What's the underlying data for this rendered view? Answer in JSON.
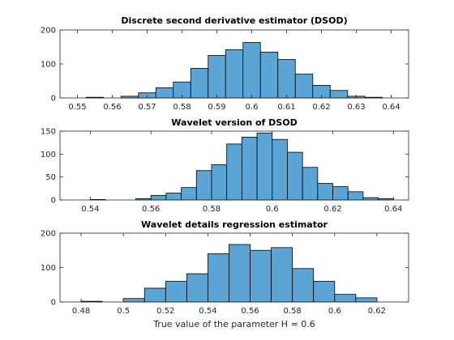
{
  "chart_data": [
    {
      "type": "bar",
      "title": "Discrete second derivative estimator (DSOD)",
      "xlabel": "",
      "ylabel": "",
      "xlim": [
        0.545,
        0.645
      ],
      "ylim": [
        0,
        200
      ],
      "xticks": [
        "0.55",
        "0.56",
        "0.57",
        "0.58",
        "0.59",
        "0.6",
        "0.61",
        "0.62",
        "0.63",
        "0.64"
      ],
      "xtick_values": [
        0.55,
        0.56,
        0.57,
        0.58,
        0.59,
        0.6,
        0.61,
        0.62,
        0.63,
        0.64
      ],
      "yticks": [
        "0",
        "100",
        "200"
      ],
      "ytick_values": [
        0,
        100,
        200
      ],
      "bin_edges": [
        0.5525,
        0.5575,
        0.5625,
        0.5675,
        0.5725,
        0.5775,
        0.5825,
        0.5875,
        0.5925,
        0.5975,
        0.6025,
        0.6075,
        0.6125,
        0.6175,
        0.6225,
        0.6275,
        0.6325,
        0.6375
      ],
      "values": [
        2,
        0,
        5,
        15,
        30,
        47,
        87,
        125,
        142,
        163,
        135,
        113,
        70,
        37,
        22,
        5,
        2
      ],
      "grid": false
    },
    {
      "type": "bar",
      "title": "Wavelet version of DSOD",
      "xlabel": "",
      "ylabel": "",
      "xlim": [
        0.53,
        0.645
      ],
      "ylim": [
        0,
        150
      ],
      "xticks": [
        "0.54",
        "0.56",
        "0.58",
        "0.6",
        "0.62",
        "0.64"
      ],
      "xtick_values": [
        0.54,
        0.56,
        0.58,
        0.6,
        0.62,
        0.64
      ],
      "yticks": [
        "0",
        "50",
        "100",
        "150"
      ],
      "ytick_values": [
        0,
        50,
        100,
        150
      ],
      "bin_edges": [
        0.54,
        0.545,
        0.55,
        0.555,
        0.56,
        0.565,
        0.57,
        0.575,
        0.58,
        0.585,
        0.59,
        0.595,
        0.6,
        0.605,
        0.61,
        0.615,
        0.62,
        0.625,
        0.63,
        0.635,
        0.64
      ],
      "values": [
        1,
        0,
        0,
        3,
        10,
        15,
        27,
        64,
        77,
        122,
        137,
        146,
        132,
        104,
        71,
        36,
        29,
        18,
        5,
        3
      ],
      "grid": false
    },
    {
      "type": "bar",
      "title": "Wavelet details regression estimator",
      "xlabel": "True value of the parameter H = 0.6",
      "ylabel": "",
      "xlim": [
        0.47,
        0.635
      ],
      "ylim": [
        0,
        200
      ],
      "xticks": [
        "0.48",
        "0.5",
        "0.52",
        "0.54",
        "0.56",
        "0.58",
        "0.6",
        "0.62"
      ],
      "xtick_values": [
        0.48,
        0.5,
        0.52,
        0.54,
        0.56,
        0.58,
        0.6,
        0.62
      ],
      "yticks": [
        "0",
        "100",
        "200"
      ],
      "ytick_values": [
        0,
        100,
        200
      ],
      "bin_edges": [
        0.48,
        0.49,
        0.5,
        0.51,
        0.52,
        0.53,
        0.54,
        0.55,
        0.56,
        0.57,
        0.58,
        0.59,
        0.6,
        0.61,
        0.62
      ],
      "values": [
        2,
        0,
        10,
        40,
        60,
        82,
        140,
        167,
        150,
        158,
        97,
        60,
        22,
        12
      ],
      "grid": false
    }
  ]
}
